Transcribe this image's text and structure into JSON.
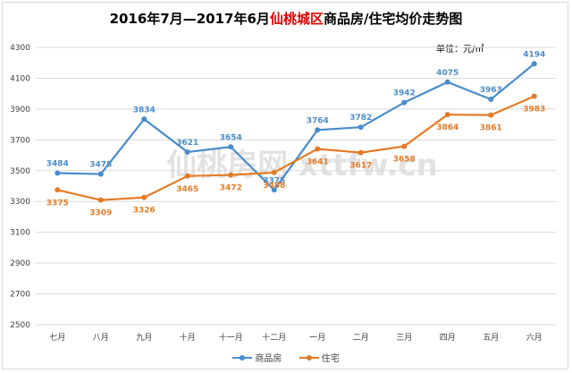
{
  "title": {
    "part1": "2016年7月—2017年6月",
    "highlight": "仙桃城区",
    "part2": "商品房/住宅均价走势图"
  },
  "unit_label": "单位：元/㎡",
  "watermark": "仙桃房网 xttfw.cn",
  "colors": {
    "series1": "#4a8ccb",
    "series2": "#e47b25",
    "grid": "#d9d9d9",
    "title_highlight": "#e00000"
  },
  "chart_data": {
    "type": "line",
    "categories": [
      "七月",
      "八月",
      "九月",
      "十月",
      "十一月",
      "十二月",
      "一月",
      "二月",
      "三月",
      "四月",
      "五月",
      "六月"
    ],
    "series": [
      {
        "name": "商品房",
        "values": [
          3484,
          3478,
          3834,
          3621,
          3654,
          3375,
          3764,
          3782,
          3942,
          4075,
          3963,
          4194
        ]
      },
      {
        "name": "住宅",
        "values": [
          3375,
          3309,
          3326,
          3465,
          3472,
          3488,
          3641,
          3617,
          3658,
          3864,
          3861,
          3983
        ]
      }
    ],
    "ylim": [
      2500,
      4300
    ],
    "yticks": [
      2500,
      2700,
      2900,
      3100,
      3300,
      3500,
      3700,
      3900,
      4100,
      4300
    ],
    "grid": true,
    "legend": "bottom"
  }
}
